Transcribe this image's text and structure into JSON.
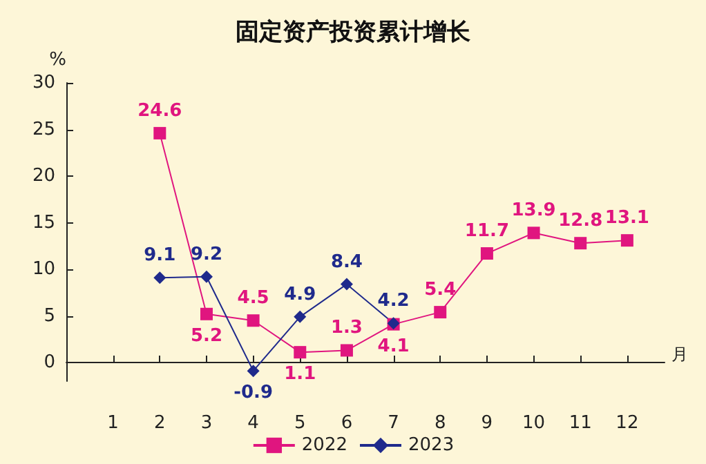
{
  "chart_data": {
    "type": "line",
    "title": "固定资产投资累计增长",
    "ylabel": "%",
    "xlabel": "月",
    "xlim": [
      0,
      12.8
    ],
    "xticks": [
      1,
      2,
      3,
      4,
      5,
      6,
      7,
      8,
      9,
      10,
      11,
      12
    ],
    "ylim": [
      -2,
      30
    ],
    "yticks": [
      0,
      5,
      10,
      15,
      20,
      25,
      30
    ],
    "series": [
      {
        "name": "2022",
        "color": "#e0157f",
        "marker": "square",
        "x": [
          2,
          3,
          4,
          5,
          6,
          7,
          8,
          9,
          10,
          11,
          12
        ],
        "values": [
          24.6,
          5.2,
          4.5,
          1.1,
          1.3,
          4.1,
          5.4,
          11.7,
          13.9,
          12.8,
          13.1
        ]
      },
      {
        "name": "2023",
        "color": "#1f2a8c",
        "marker": "diamond",
        "x": [
          2,
          3,
          4,
          5,
          6,
          7
        ],
        "values": [
          9.1,
          9.2,
          -0.9,
          4.9,
          8.4,
          4.2
        ]
      }
    ],
    "data_labels": true,
    "legend": "bottom"
  }
}
